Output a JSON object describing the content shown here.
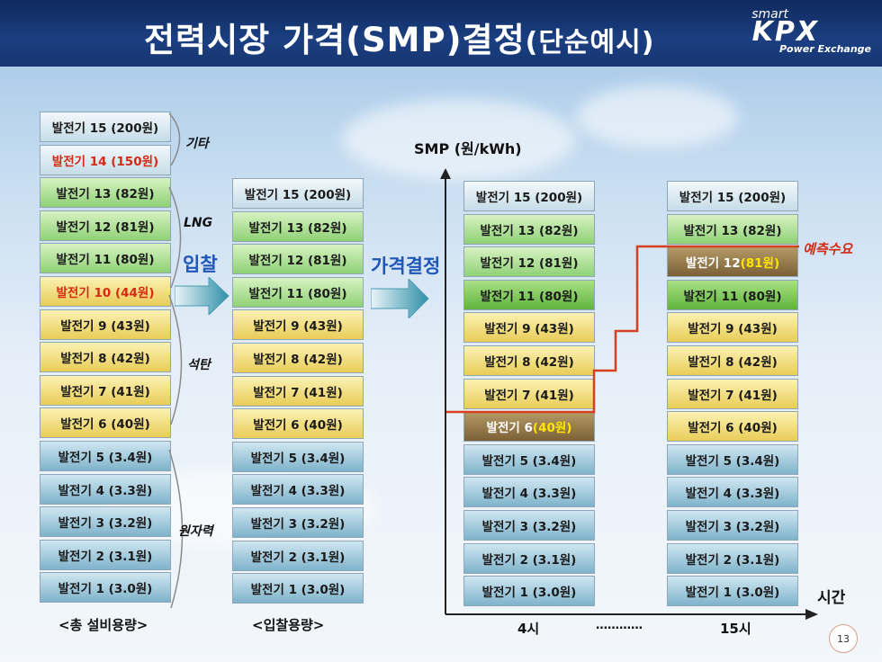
{
  "title": {
    "main": "전력시장 가격(SMP)결정",
    "sub": "(단순예시)"
  },
  "logo": {
    "smart": "smart",
    "brand": "KPX",
    "tagline": "Power Exchange"
  },
  "total_capacity": {
    "caption": "<총 설비용량>",
    "blocks": [
      {
        "label": "발전기 15 (200원)",
        "type": "top"
      },
      {
        "label": "발전기 14 (150원)",
        "type": "top",
        "red": true
      },
      {
        "label": "발전기 13 (82원)",
        "type": "lng"
      },
      {
        "label": "발전기 12 (81원)",
        "type": "lng"
      },
      {
        "label": "발전기 11 (80원)",
        "type": "lng"
      },
      {
        "label": "발전기 10 (44원)",
        "type": "coal",
        "red": true
      },
      {
        "label": "발전기 9 (43원)",
        "type": "coal"
      },
      {
        "label": "발전기 8 (42원)",
        "type": "coal"
      },
      {
        "label": "발전기 7 (41원)",
        "type": "coal"
      },
      {
        "label": "발전기 6 (40원)",
        "type": "coal"
      },
      {
        "label": "발전기 5 (3.4원)",
        "type": "nuc"
      },
      {
        "label": "발전기 4 (3.3원)",
        "type": "nuc"
      },
      {
        "label": "발전기 3 (3.2원)",
        "type": "nuc"
      },
      {
        "label": "발전기 2 (3.1원)",
        "type": "nuc"
      },
      {
        "label": "발전기 1 (3.0원)",
        "type": "nuc"
      }
    ]
  },
  "fuel_labels": {
    "other": "기타",
    "lng": "LNG",
    "coal": "석탄",
    "nuclear": "원자력"
  },
  "arrows": {
    "bid": "입찰",
    "price": "가격결정"
  },
  "bid_capacity": {
    "caption": "<입찰용량>",
    "blocks": [
      {
        "label": "발전기 15 (200원)",
        "type": "top"
      },
      {
        "label": "발전기 13 (82원)",
        "type": "lng"
      },
      {
        "label": "발전기 12 (81원)",
        "type": "lng"
      },
      {
        "label": "발전기 11 (80원)",
        "type": "lng"
      },
      {
        "label": "발전기 9 (43원)",
        "type": "coal"
      },
      {
        "label": "발전기 8 (42원)",
        "type": "coal"
      },
      {
        "label": "발전기 7 (41원)",
        "type": "coal"
      },
      {
        "label": "발전기 6 (40원)",
        "type": "coal"
      },
      {
        "label": "발전기 5 (3.4원)",
        "type": "nuc"
      },
      {
        "label": "발전기 4 (3.3원)",
        "type": "nuc"
      },
      {
        "label": "발전기 3 (3.2원)",
        "type": "nuc"
      },
      {
        "label": "발전기 2 (3.1원)",
        "type": "nuc"
      },
      {
        "label": "발전기 1 (3.0원)",
        "type": "nuc"
      }
    ]
  },
  "chart": {
    "y_axis_label": "SMP (원/kWh)",
    "x_axis_label": "시간",
    "time_labels": [
      "4시",
      "…………",
      "15시"
    ],
    "demand_label": "예측수요",
    "column_4h": [
      {
        "label": "발전기 15 (200원)",
        "type": "top"
      },
      {
        "label": "발전기 13 (82원)",
        "type": "lng"
      },
      {
        "label": "발전기 12 (81원)",
        "type": "lng"
      },
      {
        "label": "발전기 11 (80원)",
        "type": "lngdark"
      },
      {
        "label": "발전기 9 (43원)",
        "type": "coal"
      },
      {
        "label": "발전기 8 (42원)",
        "type": "coal"
      },
      {
        "label": "발전기 7 (41원)",
        "type": "coal"
      },
      {
        "label": "발전기 6 ",
        "price": "(40원)",
        "type": "brown"
      },
      {
        "label": "발전기 5 (3.4원)",
        "type": "nuc"
      },
      {
        "label": "발전기 4 (3.3원)",
        "type": "nuc"
      },
      {
        "label": "발전기 3 (3.2원)",
        "type": "nuc"
      },
      {
        "label": "발전기 2 (3.1원)",
        "type": "nuc"
      },
      {
        "label": "발전기 1 (3.0원)",
        "type": "nuc"
      }
    ],
    "column_15h": [
      {
        "label": "발전기 15 (200원)",
        "type": "top"
      },
      {
        "label": "발전기 13 (82원)",
        "type": "lng"
      },
      {
        "label": "발전기 12",
        "price": "(81원)",
        "type": "brown"
      },
      {
        "label": "발전기 11 (80원)",
        "type": "lngdark"
      },
      {
        "label": "발전기 9 (43원)",
        "type": "coal"
      },
      {
        "label": "발전기 8 (42원)",
        "type": "coal"
      },
      {
        "label": "발전기 7 (41원)",
        "type": "coal"
      },
      {
        "label": "발전기 6 (40원)",
        "type": "coal"
      },
      {
        "label": "발전기 5 (3.4원)",
        "type": "nuc"
      },
      {
        "label": "발전기 4 (3.3원)",
        "type": "nuc"
      },
      {
        "label": "발전기 3 (3.2원)",
        "type": "nuc"
      },
      {
        "label": "발전기 2 (3.1원)",
        "type": "nuc"
      },
      {
        "label": "발전기 1 (3.0원)",
        "type": "nuc"
      }
    ]
  },
  "page_number": "13",
  "colors": {
    "title_bar": "#173670",
    "demand_line": "#d7401f",
    "accent_blue": "#1f56b8"
  }
}
